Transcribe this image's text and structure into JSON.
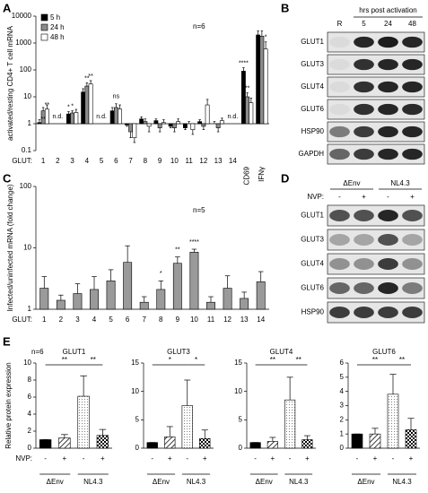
{
  "chart_data": [
    {
      "type": "bar",
      "panel": "A",
      "y_label": "activated/resting CD4+ T cell mRNA",
      "annotation": "n=6",
      "x_label": "GLUT:",
      "log": true,
      "ylim": [
        0.1,
        10000
      ],
      "yticks": [
        0.1,
        1,
        10,
        100,
        1000,
        10000
      ],
      "legend": "upper left",
      "categories": [
        "1",
        "2",
        "3",
        "4",
        "5",
        "6",
        "7",
        "8",
        "9",
        "10",
        "11",
        "12",
        "13",
        "14",
        "CD69",
        "IFNγ"
      ],
      "series": [
        {
          "name": "5 h",
          "color": "#000000",
          "values": [
            1.1,
            null,
            2.3,
            15,
            null,
            3,
            0.9,
            1.5,
            1.3,
            0.8,
            0.7,
            1.2,
            1.0,
            null,
            90,
            2000
          ],
          "errors": [
            0.3,
            null,
            0.5,
            5,
            null,
            1,
            0.1,
            0.3,
            0.2,
            0.1,
            0.1,
            0.2,
            0.2,
            null,
            30,
            800
          ]
        },
        {
          "name": "24 h",
          "color": "#8c8c8c",
          "values": [
            3,
            null,
            2.5,
            25,
            null,
            4,
            0.5,
            1.2,
            0.7,
            0.7,
            1.0,
            0.8,
            0.7,
            null,
            10,
            1800
          ],
          "errors": [
            1,
            null,
            0.5,
            8,
            null,
            1.5,
            0.2,
            0.3,
            0.2,
            0.2,
            0.2,
            0.2,
            0.2,
            null,
            4,
            1000
          ]
        },
        {
          "name": "48 h",
          "color": "#ffffff",
          "values": [
            3.5,
            null,
            2.6,
            30,
            null,
            3.5,
            0.3,
            0.8,
            1.1,
            1.2,
            0.6,
            5,
            1.3,
            null,
            6,
            600
          ],
          "errors": [
            1.5,
            null,
            0.8,
            10,
            null,
            1.5,
            0.1,
            0.3,
            0.3,
            0.3,
            0.2,
            3,
            0.3,
            null,
            3,
            500
          ]
        }
      ],
      "annotations": [
        {
          "category": "1",
          "series": "24 h",
          "text": "**"
        },
        {
          "category": "1",
          "series": "48 h",
          "text": "**"
        },
        {
          "category": "2",
          "text": "n.d."
        },
        {
          "category": "3",
          "series": "5 h",
          "text": "*"
        },
        {
          "category": "3",
          "series": "24 h",
          "text": "*"
        },
        {
          "category": "4",
          "series": "24 h",
          "text": "**"
        },
        {
          "category": "4",
          "series": "48 h",
          "text": "**"
        },
        {
          "category": "5",
          "text": "n.d."
        },
        {
          "category": "6",
          "text": "ns"
        },
        {
          "category": "14",
          "text": "n.d."
        },
        {
          "category": "CD69",
          "series": "5 h",
          "text": "****"
        },
        {
          "category": "CD69",
          "series": "24 h",
          "text": "**"
        },
        {
          "category": "IFNγ",
          "series": "48 h",
          "text": "*"
        }
      ]
    },
    {
      "type": "bar",
      "panel": "C",
      "y_label": "Infected/uninfected mRNA (fold change)",
      "annotation": "n=5",
      "x_label": "GLUT:",
      "log": true,
      "ylim": [
        1,
        100
      ],
      "yticks": [
        1,
        10,
        100
      ],
      "color": "#9a9a9a",
      "categories": [
        "1",
        "2",
        "3",
        "4",
        "5",
        "6",
        "7",
        "8",
        "9",
        "10",
        "11",
        "12",
        "13",
        "14"
      ],
      "values": [
        2.2,
        1.4,
        1.8,
        2.1,
        2.9,
        5.8,
        1.3,
        2.1,
        5.6,
        8.5,
        1.3,
        2.2,
        1.5,
        2.8
      ],
      "errors": [
        1.2,
        0.3,
        0.8,
        1.3,
        1.5,
        5,
        0.3,
        0.8,
        1.5,
        1,
        0.3,
        1.3,
        0.4,
        1.3
      ],
      "annotations": [
        {
          "category": "8",
          "text": "*"
        },
        {
          "category": "9",
          "text": "**"
        },
        {
          "category": "10",
          "text": "****"
        }
      ]
    },
    {
      "type": "bar",
      "panel": "E",
      "title": "GLUT1",
      "y_label": "Relative protein expression",
      "annotation": "n=6",
      "x_label": "NVP:",
      "ylim": [
        0,
        10
      ],
      "yticks": [
        0,
        2,
        4,
        6,
        8,
        10
      ],
      "categories": [
        "-",
        "+",
        "-",
        "+"
      ],
      "groups": [
        "ΔEnv",
        "NL4.3"
      ],
      "values": [
        1,
        1.2,
        6.1,
        1.5
      ],
      "errors": [
        0,
        0.4,
        2.4,
        0.7
      ],
      "fills": [
        "#000000",
        "hatch",
        "dots",
        "checker"
      ],
      "comparisons": [
        "**",
        "**"
      ]
    },
    {
      "type": "bar",
      "title": "GLUT3",
      "ylim": [
        0,
        15
      ],
      "yticks": [
        0,
        5,
        10,
        15
      ],
      "categories": [
        "-",
        "+",
        "-",
        "+"
      ],
      "groups": [
        "ΔEnv",
        "NL4.3"
      ],
      "values": [
        1,
        2,
        7.5,
        1.7
      ],
      "errors": [
        0,
        1.8,
        4.5,
        1.5
      ],
      "fills": [
        "#000000",
        "hatch",
        "dots",
        "checker"
      ],
      "comparisons": [
        "*",
        "*"
      ]
    },
    {
      "type": "bar",
      "title": "GLUT4",
      "ylim": [
        0,
        15
      ],
      "yticks": [
        0,
        5,
        10,
        15
      ],
      "categories": [
        "-",
        "+",
        "-",
        "+"
      ],
      "groups": [
        "ΔEnv",
        "NL4.3"
      ],
      "values": [
        1,
        1.2,
        8.5,
        1.5
      ],
      "errors": [
        0,
        0.7,
        4,
        0.7
      ],
      "fills": [
        "#000000",
        "hatch",
        "dots",
        "checker"
      ],
      "comparisons": [
        "**",
        "**"
      ]
    },
    {
      "type": "bar",
      "title": "GLUT6",
      "ylim": [
        0,
        6
      ],
      "yticks": [
        0,
        1,
        2,
        3,
        4,
        5,
        6
      ],
      "categories": [
        "-",
        "+",
        "-",
        "+"
      ],
      "groups": [
        "ΔEnv",
        "NL4.3"
      ],
      "values": [
        1,
        1,
        3.8,
        1.3
      ],
      "errors": [
        0,
        0.4,
        1.4,
        0.8
      ],
      "fills": [
        "#000000",
        "hatch",
        "dots",
        "checker"
      ],
      "comparisons": [
        "**",
        "**"
      ]
    }
  ],
  "blots": [
    {
      "panel": "B",
      "header": "hrs post activation",
      "lanes": [
        "R",
        "5",
        "24",
        "48"
      ],
      "rows": [
        "GLUT1",
        "GLUT3",
        "GLUT4",
        "GLUT6",
        "HSP90",
        "GAPDH"
      ]
    },
    {
      "panel": "D",
      "groups": [
        "ΔEnv",
        "NL4.3"
      ],
      "lane_label": "NVP:",
      "lanes": [
        "-",
        "+",
        "-",
        "+"
      ],
      "rows": [
        "GLUT1",
        "GLUT3",
        "GLUT4",
        "GLUT6",
        "HSP90"
      ]
    }
  ]
}
